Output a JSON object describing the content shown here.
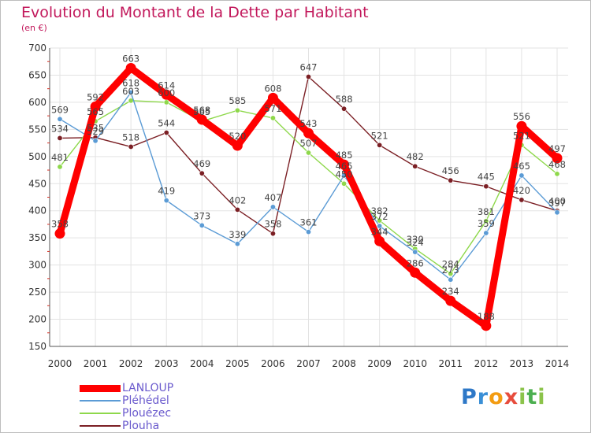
{
  "chart_data": {
    "type": "line",
    "title": "Evolution du Montant de la Dette par Habitant",
    "subtitle": "(en €)",
    "x": [
      "2000",
      "2001",
      "2002",
      "2003",
      "2004",
      "2005",
      "2006",
      "2007",
      "2008",
      "2009",
      "2010",
      "2011",
      "2012",
      "2013",
      "2014"
    ],
    "ylim": [
      150,
      700
    ],
    "yticks": [
      150,
      200,
      250,
      300,
      350,
      400,
      450,
      500,
      550,
      600,
      650,
      700
    ],
    "grid": true,
    "legend_position": "bottom-left",
    "series": [
      {
        "name": "LANLOUP",
        "color": "#ff0000",
        "values": [
          358,
          592,
          663,
          614,
          568,
          520,
          608,
          543,
          485,
          344,
          286,
          234,
          188,
          556,
          497
        ]
      },
      {
        "name": "Pléhédel",
        "color": "#5b9bd5",
        "values": [
          569,
          529,
          618,
          419,
          373,
          339,
          407,
          361,
          465,
          372,
          324,
          273,
          359,
          465,
          397
        ]
      },
      {
        "name": "Plouézec",
        "color": "#8ed84b",
        "values": [
          481,
          565,
          603,
          600,
          565,
          585,
          571,
          507,
          450,
          382,
          330,
          284,
          381,
          521,
          468
        ]
      },
      {
        "name": "Plouha",
        "color": "#7b1f24",
        "values": [
          534,
          535,
          518,
          544,
          469,
          402,
          358,
          647,
          588,
          521,
          482,
          456,
          445,
          420,
          400
        ]
      }
    ]
  },
  "brand": {
    "letters": [
      "P",
      "r",
      "o",
      "x",
      "i",
      "t",
      "i"
    ],
    "colors": [
      "#2e78c7",
      "#3a8fd6",
      "#f39c12",
      "#e74c3c",
      "#8bc34a",
      "#4caf50",
      "#8bc34a"
    ]
  }
}
